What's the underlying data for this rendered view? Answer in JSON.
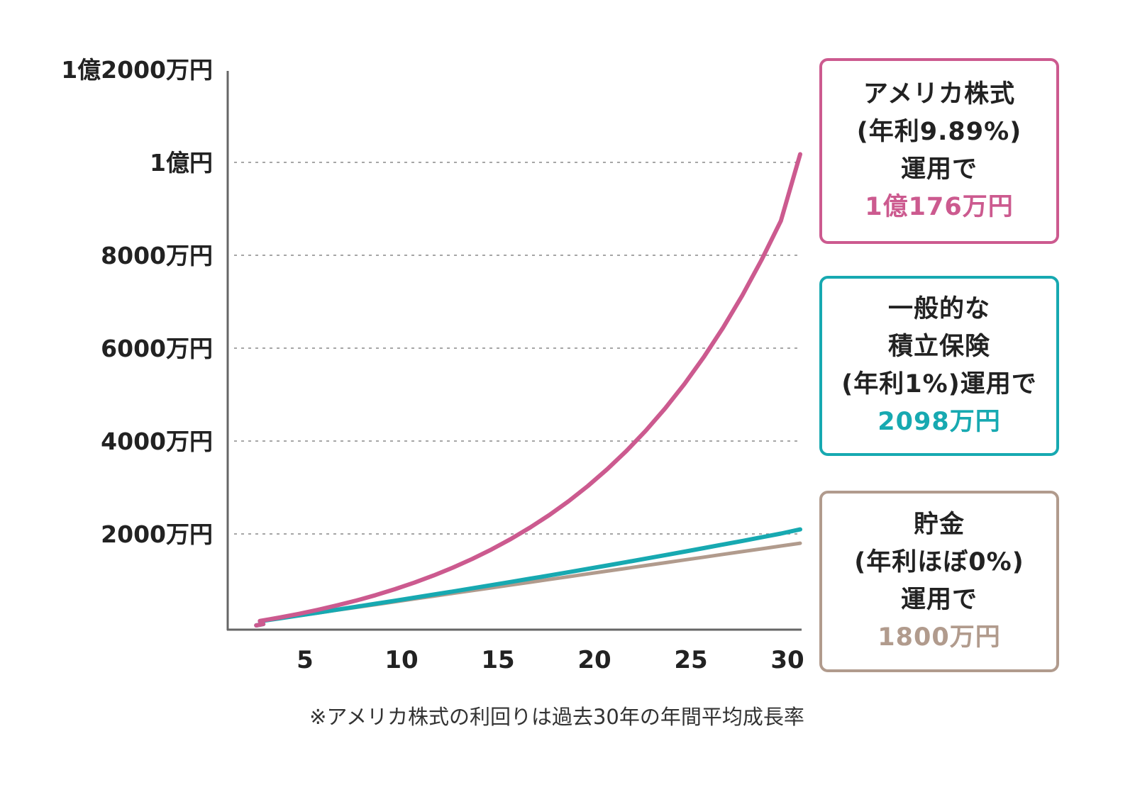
{
  "chart_data": {
    "type": "line",
    "title": "",
    "xlabel": "",
    "ylabel": "",
    "x": [
      1,
      2,
      3,
      4,
      5,
      6,
      7,
      8,
      9,
      10,
      11,
      12,
      13,
      14,
      15,
      16,
      17,
      18,
      19,
      20,
      21,
      22,
      23,
      24,
      25,
      26,
      27,
      28,
      29,
      30
    ],
    "xlim": [
      0,
      30
    ],
    "ylim": [
      0,
      12000
    ],
    "x_ticks": [
      5,
      10,
      15,
      20,
      25,
      30
    ],
    "y_ticks": [
      {
        "value": 2000,
        "label": "2000万円"
      },
      {
        "value": 4000,
        "label": "4000万円"
      },
      {
        "value": 6000,
        "label": "6000万円"
      },
      {
        "value": 8000,
        "label": "8000万円"
      },
      {
        "value": 10000,
        "label": "1億円"
      },
      {
        "value": 12000,
        "label": "1億2000万円"
      }
    ],
    "grid": "horizontal-dotted",
    "series": [
      {
        "key": "stock",
        "color": "#cc5a8f",
        "values": [
          60,
          126,
          198,
          278,
          366,
          462,
          567,
          683,
          811,
          951,
          1105,
          1275,
          1461,
          1665,
          1890,
          2137,
          2408,
          2706,
          3034,
          3394,
          3790,
          4224,
          4702,
          5227,
          5804,
          6438,
          7135,
          7900,
          8742,
          10176
        ]
      },
      {
        "key": "insurance",
        "color": "#17a9b1",
        "values": [
          60,
          121,
          182,
          244,
          306,
          369,
          433,
          497,
          562,
          628,
          694,
          761,
          829,
          897,
          966,
          1036,
          1106,
          1177,
          1249,
          1321,
          1394,
          1468,
          1543,
          1618,
          1695,
          1772,
          1849,
          1928,
          2007,
          2098
        ]
      },
      {
        "key": "savings",
        "color": "#b19b8d",
        "values": [
          60,
          120,
          180,
          240,
          300,
          360,
          420,
          480,
          540,
          600,
          660,
          720,
          780,
          840,
          900,
          960,
          1020,
          1080,
          1140,
          1200,
          1260,
          1320,
          1380,
          1440,
          1500,
          1560,
          1620,
          1680,
          1740,
          1800
        ]
      }
    ],
    "annotations": [
      {
        "key": "stock",
        "color": "#cc5a8f",
        "lines": [
          "アメリカ株式",
          "(年利9.89%)",
          "運用で"
        ],
        "amount": "1億176万円"
      },
      {
        "key": "insurance",
        "color": "#17a9b1",
        "lines": [
          "一般的な",
          "積立保険",
          "(年利1%)運用で"
        ],
        "amount": "2098万円"
      },
      {
        "key": "savings",
        "color": "#b19b8d",
        "lines": [
          "貯金",
          "(年利ほぼ0%)",
          "運用で"
        ],
        "amount": "1800万円"
      }
    ],
    "footnote": "※アメリカ株式の利回りは過去30年の年間平均成長率"
  }
}
